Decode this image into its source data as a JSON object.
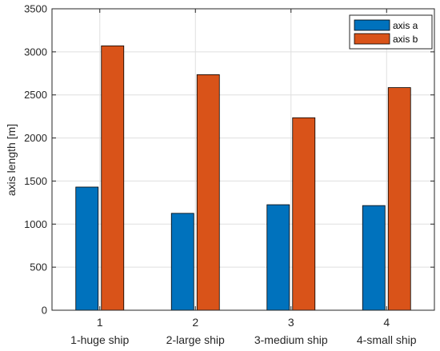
{
  "chart_data": {
    "type": "bar",
    "categories": [
      "1",
      "2",
      "3",
      "4"
    ],
    "category_labels": [
      "1-huge ship",
      "2-large ship",
      "3-medium ship",
      "4-small ship"
    ],
    "series": [
      {
        "name": "axis a",
        "values": [
          1430,
          1125,
          1225,
          1215
        ],
        "color": "#0072BD"
      },
      {
        "name": "axis b",
        "values": [
          3070,
          2735,
          2235,
          2585
        ],
        "color": "#D95319"
      }
    ],
    "title": "",
    "xlabel": "",
    "ylabel": "axis length [m]",
    "ylim": [
      0,
      3500
    ],
    "yticks": [
      "0",
      "500",
      "1000",
      "1500",
      "2000",
      "2500",
      "3000",
      "3500"
    ],
    "grid": true,
    "legend_position": "top-right"
  }
}
